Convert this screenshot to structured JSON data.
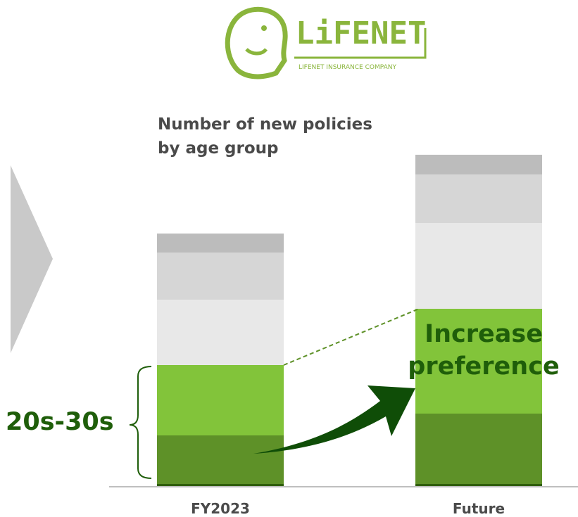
{
  "logo": {
    "name": "LiFENET",
    "tagline": "LIFENET INSURANCE COMPANY"
  },
  "chart_data": {
    "type": "stacked_bar",
    "title": "Number of new policies by age group",
    "annotations": [
      "20s-30s",
      "Increase preference"
    ],
    "categories": [
      "FY2023",
      "Future"
    ],
    "ylim": [
      0,
      480
    ],
    "series": [
      {
        "color": "#2f5e0c",
        "values": [
          3,
          3
        ]
      },
      {
        "color": "#5e9128",
        "values": [
          69,
          100
        ]
      },
      {
        "color": "#82c43a",
        "values": [
          100,
          149
        ]
      },
      {
        "color": "#e8e8e8",
        "values": [
          93,
          122
        ]
      },
      {
        "color": "#d6d6d6",
        "values": [
          67,
          69
        ]
      },
      {
        "color": "#bcbcbc",
        "values": [
          27,
          28
        ]
      }
    ]
  }
}
